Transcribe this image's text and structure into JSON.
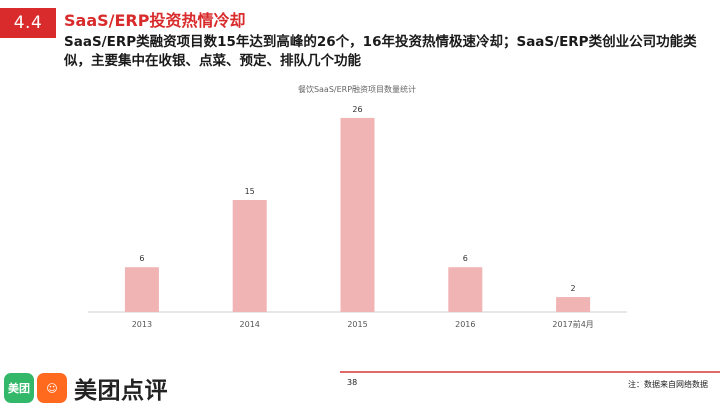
{
  "section": {
    "number": "4.4"
  },
  "slide": {
    "title": "SaaS/ERP投资热情冷却",
    "subtitle": "SaaS/ERP类融资项目数15年达到高峰的26个，16年投资热情极速冷却；SaaS/ERP类创业公司功能类似，主要集中在收银、点菜、预定、排队几个功能"
  },
  "chart_data": {
    "type": "bar",
    "title": "餐饮SaaS/ERP融资项目数量统计",
    "categories": [
      "2013",
      "2014",
      "2015",
      "2016",
      "2017前4月"
    ],
    "values": [
      6,
      15,
      26,
      6,
      2
    ],
    "xlabel": "",
    "ylabel": "",
    "ylim": [
      0,
      28
    ],
    "grid": false,
    "legend": "none",
    "bar_color": "#f0b4b4"
  },
  "footer": {
    "page": "38",
    "note": "注：数据来自网络数据",
    "logo_badge_left": "美团",
    "logo_badge_right": "☺",
    "logo_text": "美团点评"
  },
  "colors": {
    "accent": "#d92b2b",
    "bar": "#f0b4b4",
    "rule": "#e06a6a"
  }
}
